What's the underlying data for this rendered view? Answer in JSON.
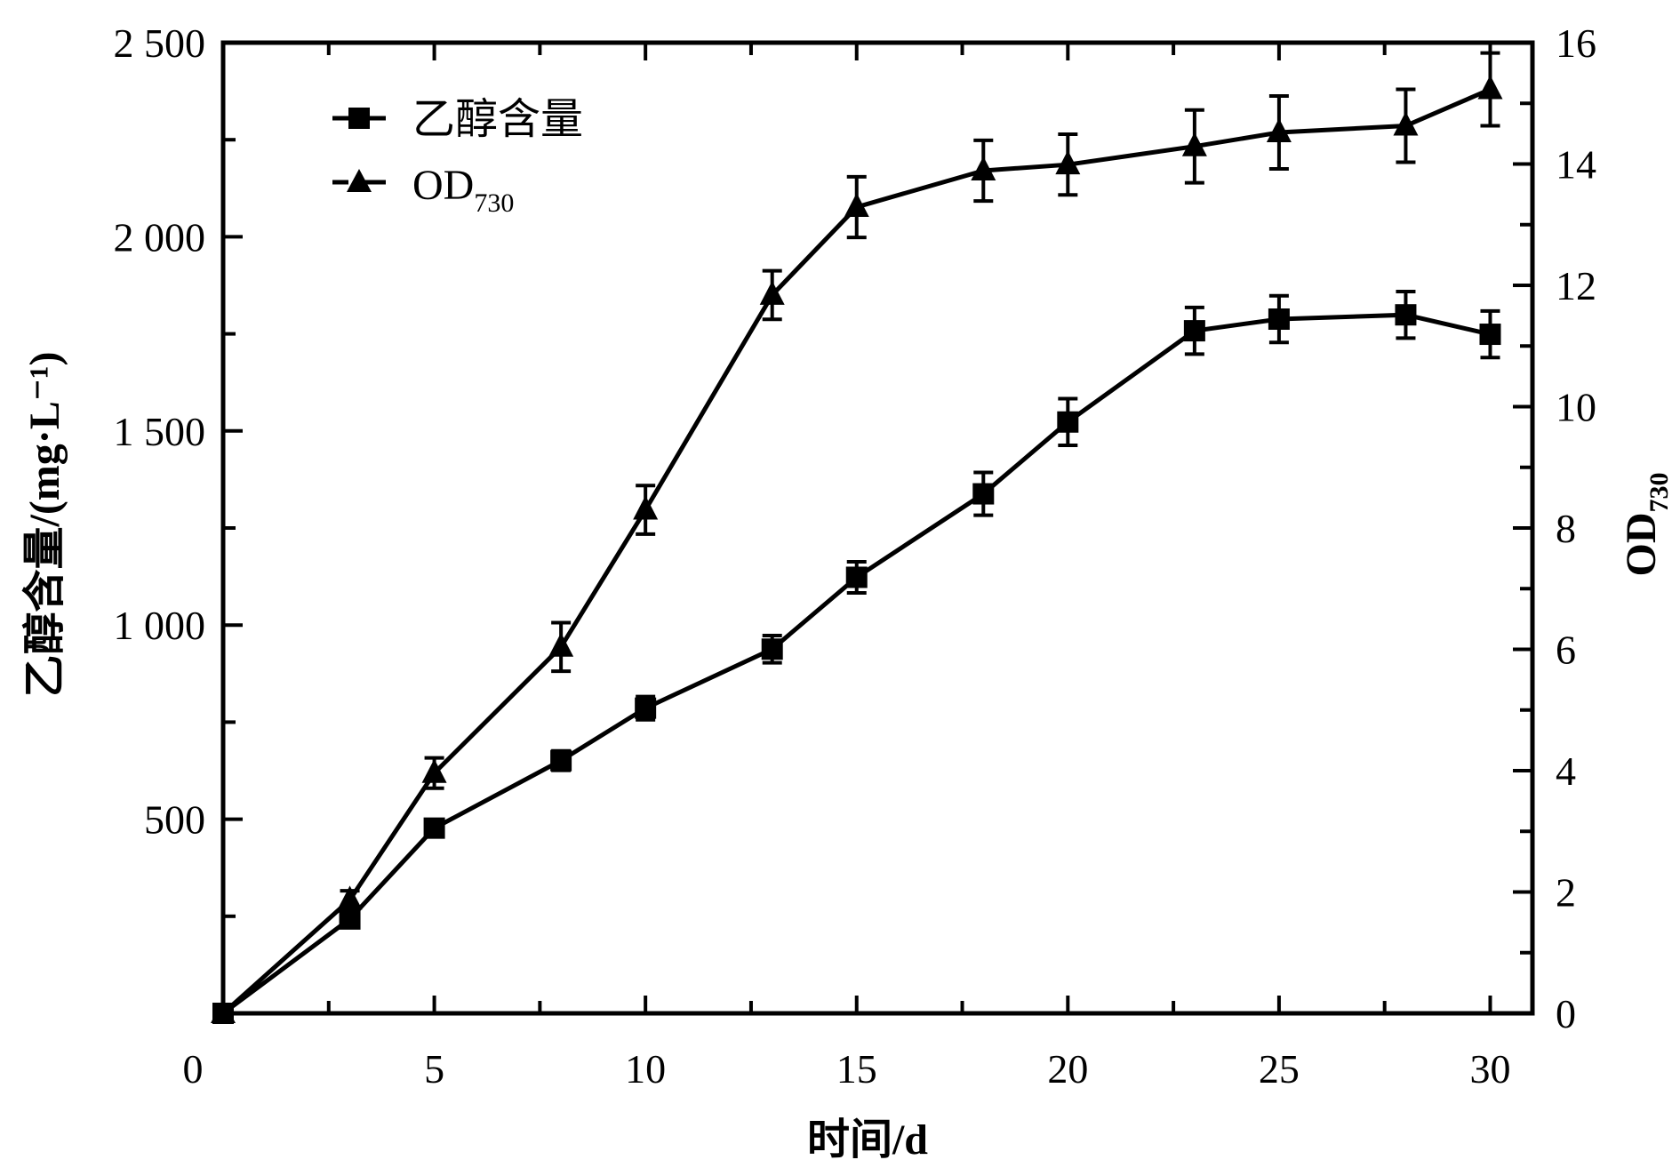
{
  "chart_data": {
    "type": "line",
    "xlabel": "时间/d",
    "ylabel_left": "乙醇含量/(mg·L⁻¹)",
    "ylabel_right": "OD730",
    "ylabel_right_base": "OD",
    "ylabel_right_sub": "730",
    "xlim": [
      0,
      31
    ],
    "ylim_left": [
      0,
      2500
    ],
    "ylim_right": [
      0,
      16
    ],
    "x_ticks": [
      0,
      5,
      10,
      15,
      20,
      25,
      30
    ],
    "y_left_ticks": [
      500,
      1000,
      1500,
      2000,
      2500
    ],
    "y_left_tick_labels": [
      "500",
      "1 000",
      "1 500",
      "2 000",
      "2 500"
    ],
    "y_right_ticks": [
      0,
      2,
      4,
      6,
      8,
      10,
      12,
      14,
      16
    ],
    "grid": false,
    "legend_placement": "top-left",
    "x": [
      0,
      3,
      5,
      8,
      10,
      13,
      15,
      18,
      20,
      23,
      25,
      28,
      30
    ],
    "series": [
      {
        "name": "乙醇含量",
        "axis": "left",
        "marker": "square",
        "values": [
          0,
          243,
          477,
          651,
          786,
          938,
          1123,
          1338,
          1523,
          1758,
          1788,
          1799,
          1749
        ],
        "errors": [
          0,
          20,
          20,
          25,
          30,
          35,
          40,
          55,
          60,
          60,
          60,
          60,
          60
        ]
      },
      {
        "name": "OD",
        "name_sub": "730",
        "axis": "right",
        "marker": "triangle",
        "values": [
          0,
          1.87,
          3.96,
          6.04,
          8.3,
          11.84,
          13.29,
          13.89,
          13.99,
          14.29,
          14.52,
          14.63,
          15.23
        ],
        "errors": [
          0,
          0.15,
          0.25,
          0.4,
          0.4,
          0.4,
          0.5,
          0.5,
          0.5,
          0.6,
          0.6,
          0.6,
          0.6
        ]
      }
    ],
    "color": "#000000"
  }
}
